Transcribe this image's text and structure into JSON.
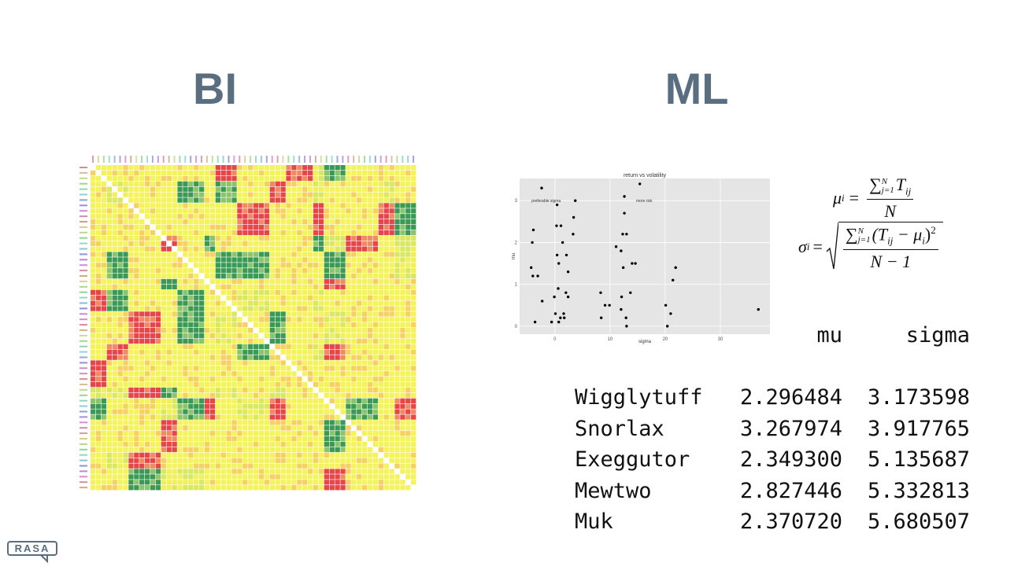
{
  "slide": {
    "left_heading": "BI",
    "right_heading": "ML",
    "logo": "RASA",
    "scatter": {
      "type": "scatter",
      "title": "return vs volatility",
      "x_label": "sigma",
      "y_label": "mu",
      "annotations": [
        "preferable sigma",
        "more risk"
      ],
      "xlim": [
        -6.4,
        39
      ],
      "ylim": [
        -0.19,
        3.53
      ],
      "xticks": [
        0,
        10,
        20,
        30
      ],
      "yticks": [
        0,
        1,
        2,
        3
      ],
      "color": "#000000",
      "background": "#e5e5e5",
      "x": [
        -2.4,
        0.4,
        3.7,
        15.4,
        12.6,
        -3.9,
        0.3,
        1.1,
        3.4,
        3.3,
        12.6,
        12.3,
        13.0,
        -4.1,
        1.4,
        2.1,
        0.4,
        0.7,
        2.4,
        -4.3,
        -4.0,
        -3.1,
        11.1,
        12.0,
        12.4,
        14.0,
        14.6,
        21.9,
        21.4,
        0.6,
        -0.1,
        2.0,
        2.4,
        -2.3,
        8.3,
        9.1,
        9.9,
        12.1,
        13.7,
        12.0,
        20.1,
        21.0,
        36.9,
        -3.6,
        -0.6,
        0.7,
        1.0,
        1.7,
        1.6,
        8.4,
        12.9,
        13.0,
        20.4,
        0.1
      ],
      "y": [
        3.3,
        2.9,
        3.0,
        3.4,
        3.1,
        2.3,
        2.4,
        2.4,
        2.6,
        2.2,
        2.7,
        2.2,
        2.2,
        2.0,
        2.0,
        1.7,
        1.7,
        1.5,
        1.3,
        1.4,
        1.2,
        1.2,
        1.9,
        1.8,
        1.4,
        1.5,
        1.5,
        1.4,
        1.1,
        0.9,
        0.7,
        0.8,
        0.7,
        0.6,
        0.8,
        0.5,
        0.5,
        0.7,
        0.8,
        0.4,
        0.5,
        0.3,
        0.4,
        0.1,
        0.1,
        0.1,
        0.2,
        0.2,
        0.3,
        0.2,
        0.2,
        0.0,
        0.0,
        0.3
      ]
    },
    "formulas": {
      "mean": {
        "lhs": "μ",
        "lhs_sub": "i",
        "equals": "=",
        "sum": "∑",
        "sum_upper": "N",
        "sum_lower": "j=1",
        "term": "T",
        "term_sub": "ij",
        "denominator": "N"
      },
      "std": {
        "lhs": "σ",
        "lhs_sub": "i",
        "equals": "=",
        "sum": "∑",
        "sum_upper": "N",
        "sum_lower": "j=1",
        "term": "(T",
        "term_sub": "ij",
        "minus": " − μ",
        "mu_sub": "i",
        "close": ")",
        "power": "2",
        "denominator": "N − 1"
      }
    },
    "table": {
      "header": [
        "mu",
        "sigma"
      ],
      "rows": [
        [
          "Wigglytuff",
          "2.296484",
          "3.173598"
        ],
        [
          "Snorlax",
          "3.267974",
          "3.917765"
        ],
        [
          "Exeggutor",
          "2.349300",
          "5.135687"
        ],
        [
          "Mewtwo",
          "2.827446",
          "5.332813"
        ],
        [
          "Muk",
          "2.370720",
          "5.680507"
        ]
      ]
    }
  }
}
